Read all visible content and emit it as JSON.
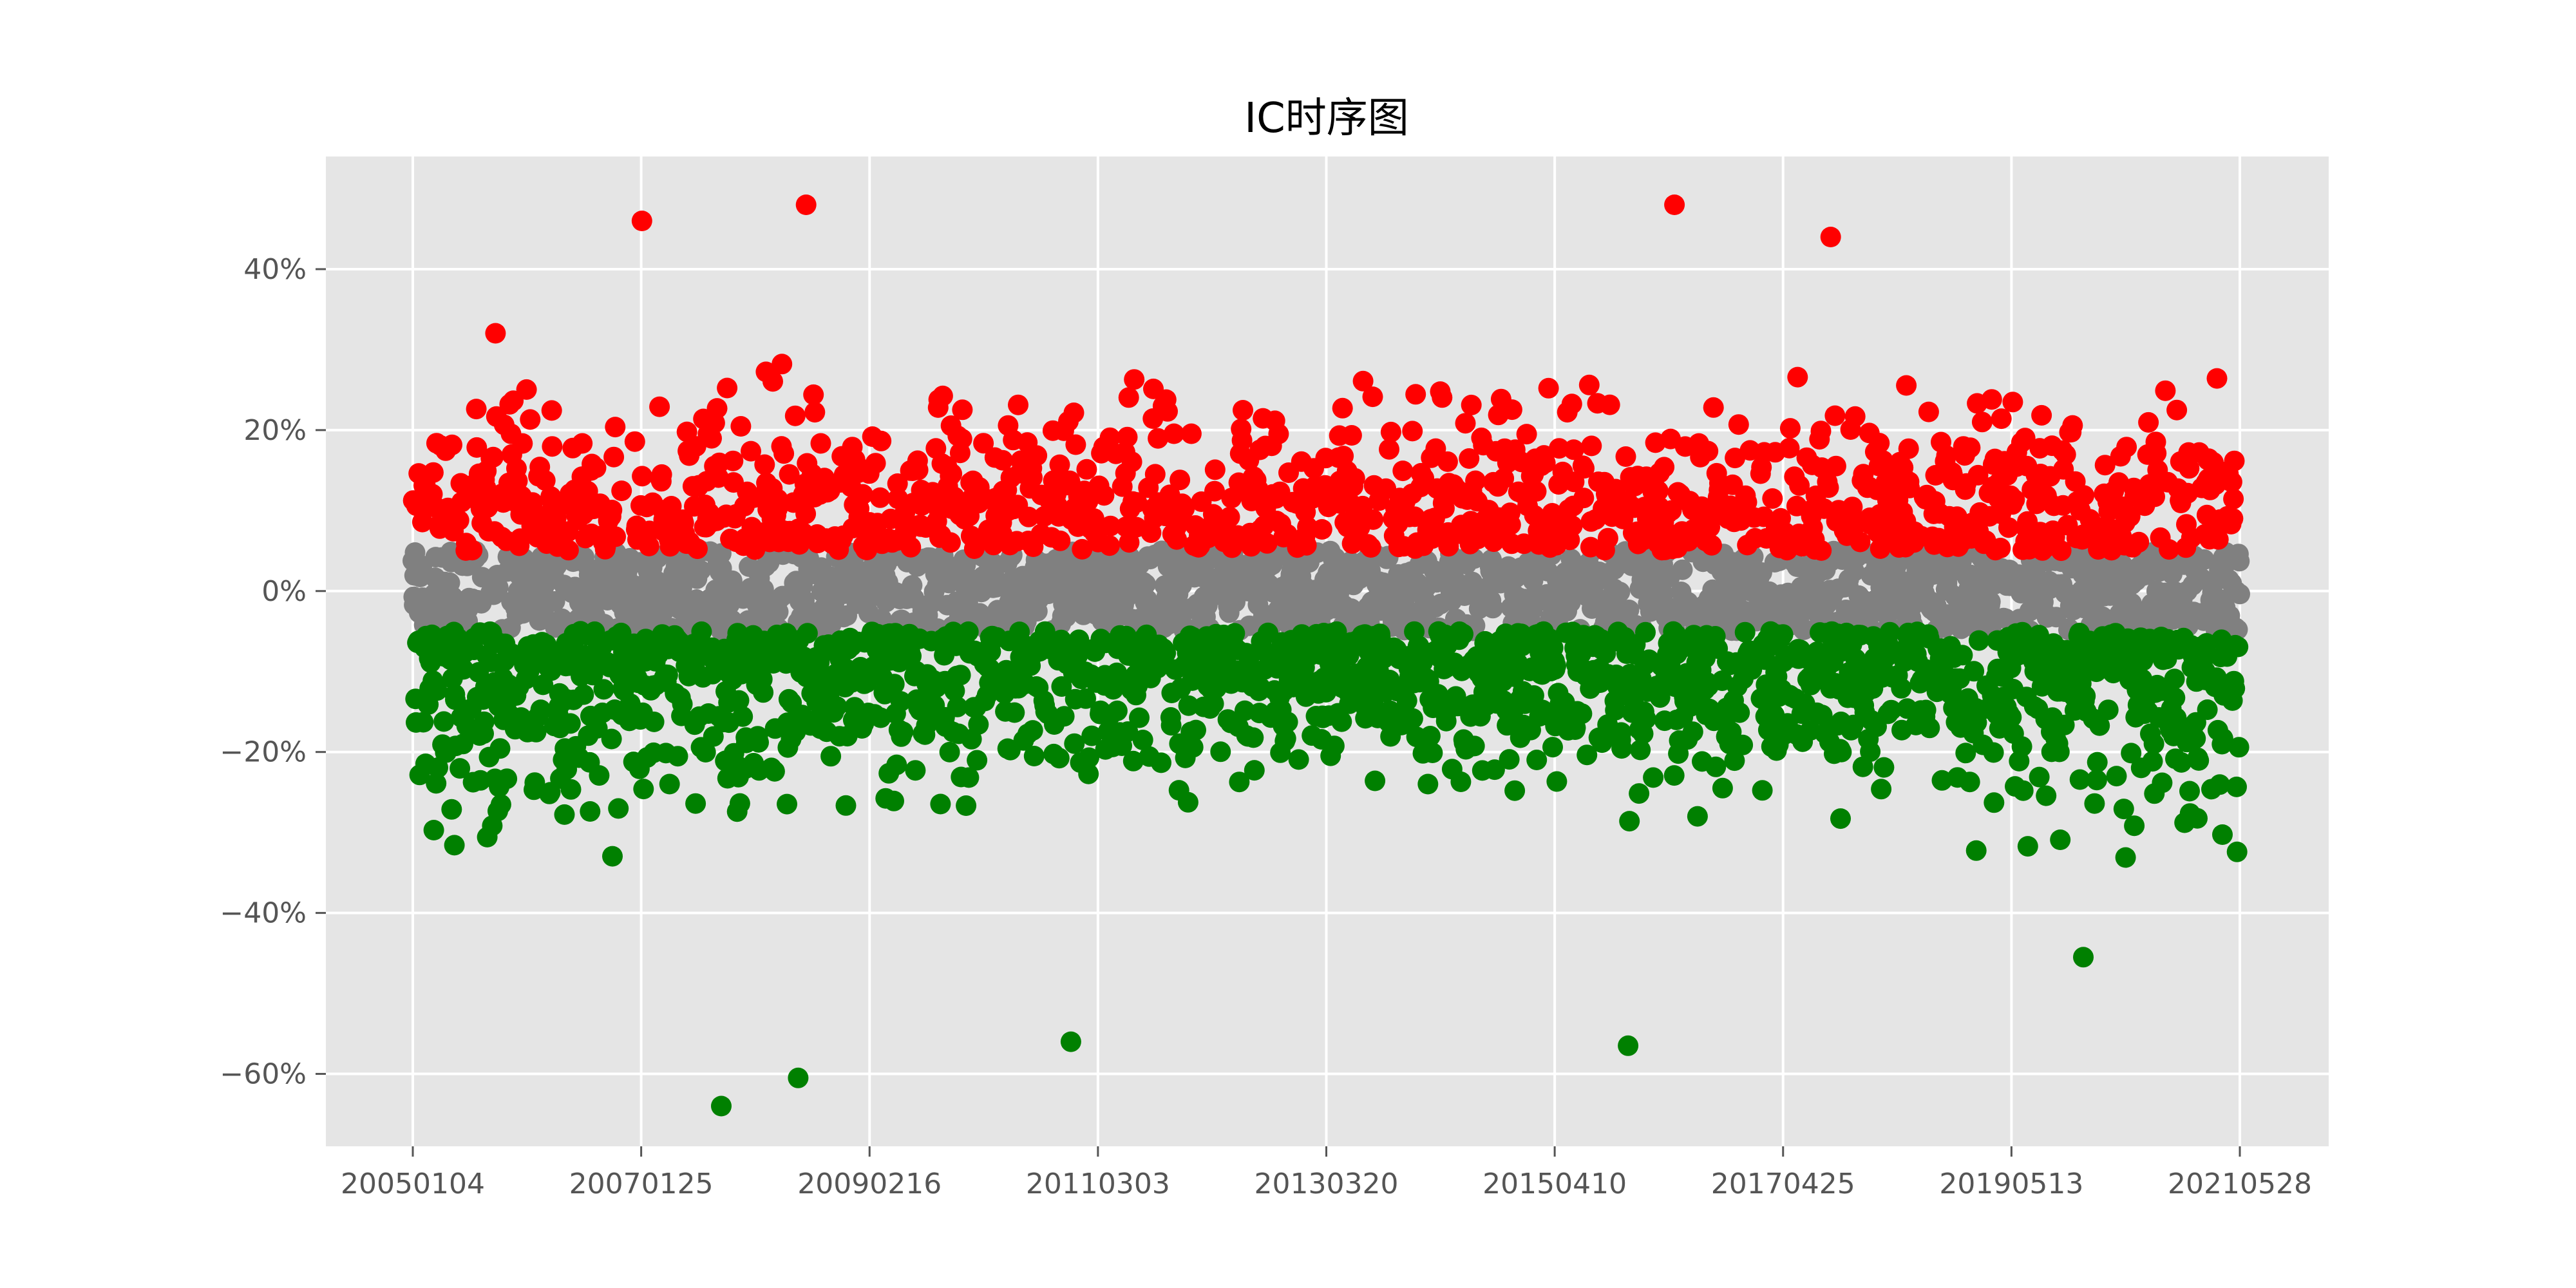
{
  "chart_data": {
    "type": "scatter",
    "title": "IC时序图",
    "xlabel": "",
    "ylabel": "",
    "x_ticks": [
      "20050104",
      "20070125",
      "20090216",
      "20110303",
      "20130320",
      "20150410",
      "20170425",
      "20190513",
      "20210528"
    ],
    "x_range": [
      "20050104",
      "20210528"
    ],
    "y_ticks": [
      "40%",
      "20%",
      "0%",
      "−20%",
      "−40%",
      "−60%"
    ],
    "y_tick_values": [
      0.4,
      0.2,
      0.0,
      -0.2,
      -0.4,
      -0.6
    ],
    "ylim": [
      -0.69,
      0.54
    ],
    "grid": true,
    "background": "#e5e5e5",
    "grid_color": "#ffffff",
    "n_points": 4000,
    "series": [
      {
        "color": "#ff0000",
        "rule": "IC > 5%",
        "typical_range": [
          0.05,
          0.48
        ]
      },
      {
        "color": "#808080",
        "rule": "-5% <= IC <= 5%",
        "typical_range": [
          -0.05,
          0.05
        ]
      },
      {
        "color": "#008000",
        "rule": "IC < -5%",
        "typical_range": [
          -0.64,
          -0.05
        ]
      }
    ],
    "notable_points": [
      {
        "x": "20070125",
        "y": 0.46
      },
      {
        "x": "20080716",
        "y": 0.48
      },
      {
        "x": "20160501",
        "y": 0.48
      },
      {
        "x": "20170925",
        "y": 0.44
      },
      {
        "x": "20071012",
        "y": -0.64
      },
      {
        "x": "20080620",
        "y": -0.605
      },
      {
        "x": "20101201",
        "y": -0.56
      },
      {
        "x": "20151201",
        "y": -0.565
      },
      {
        "x": "20200101",
        "y": -0.455
      }
    ]
  }
}
